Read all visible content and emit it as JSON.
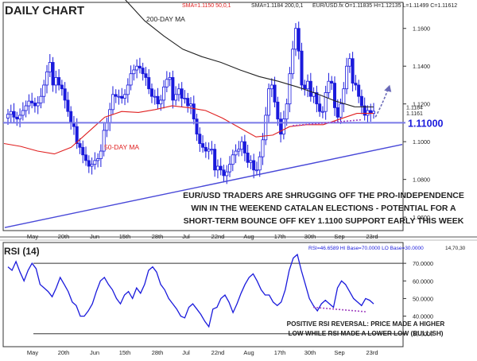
{
  "header": {
    "title": "DAILY CHART",
    "sma_red": "SMA=1.1150 50,0,1",
    "sma_black": "SMA=1.1184 200,0,1",
    "ohlc": "EUR/USD.fx O=1.11835 H=1.12135 L=1.11499 C=1.11612"
  },
  "colors": {
    "candle_up": "#ffffff",
    "candle_down": "#1a1adc",
    "candle_outline": "#1a1adc",
    "ma50": "#e02020",
    "ma200": "#222222",
    "support": "#7a7ae8",
    "trendline": "#4848d8",
    "rsi_line": "#1a1adc",
    "divergence": "#a040c0"
  },
  "labels": {
    "ma200": "200-DAY MA",
    "ma50": "50-DAY MA",
    "support": "1.11000",
    "price_annotation": [
      "EUR/USD TRADERS ARE SHRUGGING OFF THE PRO-INDEPENDENCE",
      "WIN IN THE WEEKEND CATALAN ELECTIONS - POTENTIAL FOR A",
      "SHORT-TERM BOUNCE OFF KEY 1.1100 SUPPORT EARLY THIS WEEK"
    ],
    "rsi_annotation": [
      "POSITIVE RSI REVERSAL: PRICE MADE A HIGHER",
      "LOW WHILE RSI MADE A LOWER LOW (BULLISH)"
    ],
    "price_tag_a": "1.1184",
    "price_tag_b": "1.1161"
  },
  "rsi_panel": {
    "title": "RSI (14)",
    "info": "RSI=46.6589 HI Base=70.0000 LO Base=30.0000",
    "info_right": "14,70,30"
  },
  "chart_data": [
    {
      "type": "candlestick",
      "title": "DAILY CHART",
      "instrument": "EUR/USD",
      "x_tick_labels": [
        "May",
        "20th",
        "Jun",
        "15th",
        "28th",
        "Jul",
        "22nd",
        "Aug",
        "17th",
        "30th",
        "Sep",
        "23rd"
      ],
      "ylim": [
        1.055,
        1.17
      ],
      "y_ticks": [
        1.06,
        1.08,
        1.1,
        1.12,
        1.14,
        1.16
      ],
      "y_tick_labels": [
        "1.0600",
        "1.0800",
        "1.1000",
        "1.1200",
        "1.1400",
        "1.1600"
      ],
      "support_level": 1.11,
      "close": [
        1.1145,
        1.116,
        1.113,
        1.112,
        1.114,
        1.1165,
        1.119,
        1.1215,
        1.1205,
        1.119,
        1.1205,
        1.124,
        1.13,
        1.137,
        1.142,
        1.13,
        1.134,
        1.13,
        1.128,
        1.122,
        1.116,
        1.11,
        1.108,
        1.099,
        1.097,
        1.093,
        1.09,
        1.087,
        1.088,
        1.09,
        1.091,
        1.095,
        1.106,
        1.11,
        1.117,
        1.125,
        1.124,
        1.124,
        1.123,
        1.125,
        1.13,
        1.136,
        1.138,
        1.14,
        1.139,
        1.136,
        1.134,
        1.128,
        1.124,
        1.124,
        1.12,
        1.122,
        1.129,
        1.133,
        1.134,
        1.122,
        1.125,
        1.128,
        1.123,
        1.123,
        1.119,
        1.12,
        1.112,
        1.104,
        1.099,
        1.097,
        1.095,
        1.096,
        1.096,
        1.085,
        1.087,
        1.085,
        1.082,
        1.084,
        1.088,
        1.093,
        1.095,
        1.096,
        1.1,
        1.094,
        1.089,
        1.09,
        1.085,
        1.085,
        1.092,
        1.101,
        1.114,
        1.128,
        1.13,
        1.121,
        1.112,
        1.104,
        1.112,
        1.12,
        1.136,
        1.149,
        1.16,
        1.148,
        1.13,
        1.128,
        1.132,
        1.124,
        1.126,
        1.12,
        1.116,
        1.116,
        1.126,
        1.132,
        1.131,
        1.118,
        1.113,
        1.12,
        1.128,
        1.14,
        1.144,
        1.131,
        1.13,
        1.124,
        1.119,
        1.114,
        1.1165,
        1.115,
        1.1161
      ],
      "ma50": [
        1.099,
        1.0975,
        1.095,
        1.0935,
        1.097,
        1.105,
        1.113,
        1.116,
        1.1155,
        1.117,
        1.119,
        1.118,
        1.1165,
        1.1125,
        1.1075,
        1.1025,
        1.1035,
        1.108,
        1.109,
        1.109,
        1.112,
        1.115,
        1.115
      ],
      "ma200": [
        1.186,
        1.175,
        1.164,
        1.156,
        1.149,
        1.145,
        1.142,
        1.138,
        1.1345,
        1.132,
        1.129,
        1.1255,
        1.1215,
        1.1185,
        1.1184
      ]
    },
    {
      "type": "line",
      "title": "RSI (14)",
      "ylim": [
        24,
        80
      ],
      "y_ticks": [
        30,
        40,
        50,
        60,
        70
      ],
      "y_tick_labels": [
        "30.0000",
        "40.0000",
        "50.0000",
        "60.0000",
        "70.0000"
      ],
      "hi_base": 70,
      "lo_base": 30,
      "values": [
        68,
        66,
        71,
        65,
        60,
        66,
        70,
        67,
        58,
        56,
        54,
        51,
        56,
        62,
        58,
        54,
        48,
        46,
        40,
        40,
        43,
        47,
        54,
        60,
        62,
        58,
        55,
        50,
        47,
        52,
        54,
        50,
        56,
        53,
        58,
        66,
        68,
        65,
        58,
        55,
        50,
        47,
        44,
        40,
        39,
        45,
        47,
        44,
        41,
        37,
        34,
        44,
        45,
        50,
        52,
        48,
        42,
        47,
        53,
        58,
        62,
        64,
        60,
        55,
        52,
        52,
        48,
        46,
        48,
        55,
        66,
        73,
        75,
        66,
        58,
        50,
        46,
        43,
        47,
        49,
        47,
        45,
        56,
        60,
        58,
        54,
        50,
        48,
        46,
        50,
        49,
        47
      ]
    }
  ]
}
